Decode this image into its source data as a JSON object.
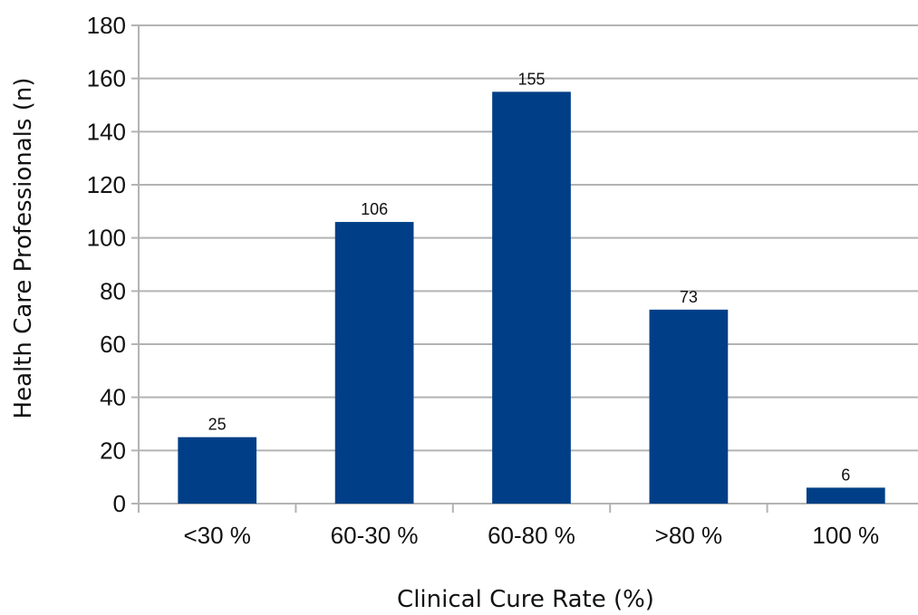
{
  "chart_data": {
    "type": "bar",
    "categories": [
      "<30 %",
      "60-30 %",
      "60-80 %",
      ">80 %",
      "100 %"
    ],
    "values": [
      25,
      106,
      155,
      73,
      6
    ],
    "data_labels": [
      "25",
      "106",
      "155",
      "73",
      "6"
    ],
    "xlabel": "Clinical Cure Rate (%)",
    "ylabel": "Health Care Professionals (n)",
    "ylim": [
      0,
      180
    ],
    "yticks": [
      0,
      20,
      40,
      60,
      80,
      100,
      120,
      140,
      160,
      180
    ],
    "grid": true,
    "legend": "none",
    "bar_color": "#003f87"
  }
}
